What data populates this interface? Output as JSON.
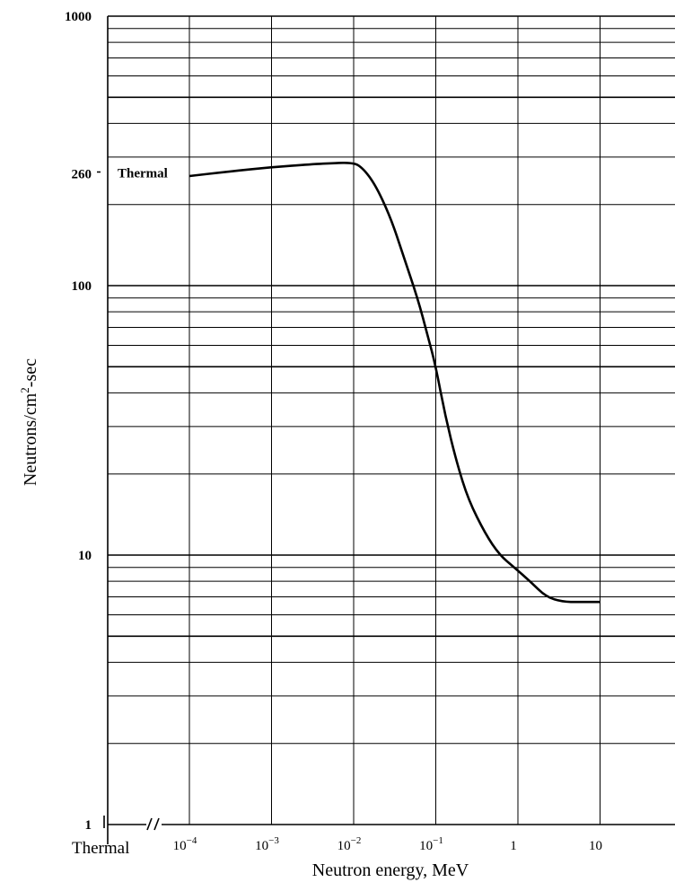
{
  "chart_data": {
    "type": "line",
    "title": "",
    "xlabel": "Neutron energy, MeV",
    "ylabel": "Neutrons/cm",
    "ylabel_sup": "2",
    "ylabel_tail": "-sec",
    "x_scale": "log",
    "y_scale": "log",
    "xlim": [
      3e-05,
      60
    ],
    "ylim": [
      1,
      1000
    ],
    "grid": true,
    "x_ticks": [
      {
        "value": 0.0001,
        "base": "10",
        "exp": "−4"
      },
      {
        "value": 0.001,
        "base": "10",
        "exp": "−3"
      },
      {
        "value": 0.01,
        "base": "10",
        "exp": "−2"
      },
      {
        "value": 0.1,
        "base": "10",
        "exp": "−1"
      },
      {
        "value": 1,
        "base": "1",
        "exp": ""
      },
      {
        "value": 10,
        "base": "10",
        "exp": ""
      }
    ],
    "y_ticks": [
      {
        "value": 1,
        "label": "1"
      },
      {
        "value": 10,
        "label": "10"
      },
      {
        "value": 100,
        "label": "100"
      },
      {
        "value": 260,
        "label": "260"
      },
      {
        "value": 1000,
        "label": "1000"
      }
    ],
    "x_axis_note": "Thermal",
    "annotation": {
      "text": "Thermal",
      "value": 260
    },
    "series": [
      {
        "x": [
          0.0001,
          0.0003,
          0.001,
          0.003,
          0.006,
          0.009,
          0.012,
          0.018,
          0.028,
          0.04,
          0.06,
          0.08,
          0.1,
          0.13,
          0.18,
          0.25,
          0.4,
          0.6,
          0.9,
          1.4,
          2.2,
          3.5,
          6,
          10
        ],
        "y": [
          255,
          265,
          275,
          282,
          285,
          286,
          280,
          240,
          180,
          130,
          90,
          65,
          50,
          33,
          22,
          16,
          12,
          10,
          9,
          8,
          7,
          6.7,
          6.7,
          6.7
        ]
      }
    ]
  }
}
